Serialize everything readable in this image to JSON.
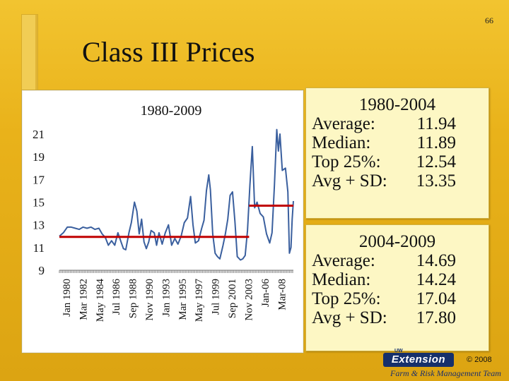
{
  "slide": {
    "number": "66",
    "title": "Class III Prices"
  },
  "chart_data": {
    "type": "line",
    "title": "1980-2009",
    "ylim": [
      9,
      21
    ],
    "y_ticks": [
      "21",
      "19",
      "17",
      "15",
      "13",
      "11",
      "9"
    ],
    "x_tick_labels": [
      "Jan 1980",
      "Mar 1982",
      "May 1984",
      "Jul 1986",
      "Sep 1988",
      "Nov 1990",
      "Jan 1993",
      "Mar 1995",
      "May 1997",
      "Jul 1999",
      "Sep 2001",
      "Nov 2003",
      "Jan-06",
      "Mar-08"
    ],
    "x_range": [
      1980.0,
      2009.6
    ],
    "series": [
      {
        "points": [
          [
            1980.0,
            12.0
          ],
          [
            1980.5,
            12.3
          ],
          [
            1981.0,
            12.8
          ],
          [
            1981.5,
            12.8
          ],
          [
            1982.0,
            12.7
          ],
          [
            1982.5,
            12.6
          ],
          [
            1983.0,
            12.8
          ],
          [
            1983.5,
            12.7
          ],
          [
            1984.0,
            12.8
          ],
          [
            1984.5,
            12.6
          ],
          [
            1985.0,
            12.7
          ],
          [
            1985.4,
            12.2
          ],
          [
            1985.8,
            11.9
          ],
          [
            1986.2,
            11.2
          ],
          [
            1986.6,
            11.6
          ],
          [
            1987.0,
            11.2
          ],
          [
            1987.4,
            12.3
          ],
          [
            1987.8,
            11.5
          ],
          [
            1988.1,
            10.9
          ],
          [
            1988.4,
            10.8
          ],
          [
            1988.8,
            12.3
          ],
          [
            1989.1,
            13.2
          ],
          [
            1989.5,
            15.0
          ],
          [
            1989.8,
            14.2
          ],
          [
            1990.1,
            12.2
          ],
          [
            1990.4,
            13.5
          ],
          [
            1990.7,
            11.5
          ],
          [
            1991.0,
            10.9
          ],
          [
            1991.3,
            11.5
          ],
          [
            1991.6,
            12.5
          ],
          [
            1992.0,
            12.3
          ],
          [
            1992.3,
            11.2
          ],
          [
            1992.6,
            12.3
          ],
          [
            1993.0,
            11.3
          ],
          [
            1993.4,
            12.3
          ],
          [
            1993.8,
            13.0
          ],
          [
            1994.2,
            11.2
          ],
          [
            1994.6,
            11.8
          ],
          [
            1995.0,
            11.3
          ],
          [
            1995.4,
            12.0
          ],
          [
            1995.8,
            13.2
          ],
          [
            1996.2,
            13.6
          ],
          [
            1996.6,
            15.5
          ],
          [
            1996.9,
            13.0
          ],
          [
            1997.2,
            11.4
          ],
          [
            1997.6,
            11.6
          ],
          [
            1998.0,
            12.7
          ],
          [
            1998.3,
            13.4
          ],
          [
            1998.6,
            16.0
          ],
          [
            1998.9,
            17.4
          ],
          [
            1999.1,
            16.1
          ],
          [
            1999.4,
            12.2
          ],
          [
            1999.7,
            10.5
          ],
          [
            2000.0,
            10.2
          ],
          [
            2000.3,
            10.0
          ],
          [
            2000.7,
            11.2
          ],
          [
            2001.0,
            12.2
          ],
          [
            2001.3,
            13.5
          ],
          [
            2001.6,
            15.6
          ],
          [
            2001.9,
            15.9
          ],
          [
            2002.2,
            13.3
          ],
          [
            2002.5,
            10.2
          ],
          [
            2002.9,
            9.9
          ],
          [
            2003.2,
            10.0
          ],
          [
            2003.5,
            10.3
          ],
          [
            2003.8,
            12.5
          ],
          [
            2004.1,
            16.5
          ],
          [
            2004.4,
            19.9
          ],
          [
            2004.7,
            14.5
          ],
          [
            2005.0,
            15.0
          ],
          [
            2005.4,
            14.0
          ],
          [
            2005.8,
            13.7
          ],
          [
            2006.2,
            12.2
          ],
          [
            2006.6,
            11.4
          ],
          [
            2006.9,
            12.3
          ],
          [
            2007.2,
            16.5
          ],
          [
            2007.5,
            21.4
          ],
          [
            2007.7,
            19.5
          ],
          [
            2007.9,
            21.0
          ],
          [
            2008.2,
            17.8
          ],
          [
            2008.6,
            18.0
          ],
          [
            2008.9,
            15.9
          ],
          [
            2009.1,
            10.5
          ],
          [
            2009.3,
            11.0
          ],
          [
            2009.45,
            13.5
          ],
          [
            2009.6,
            15.1
          ]
        ]
      }
    ],
    "averages": [
      {
        "x_start": 1980.0,
        "x_end": 2004.0,
        "value": 11.94
      },
      {
        "x_start": 2004.0,
        "x_end": 2009.6,
        "value": 14.69
      }
    ],
    "colors": {
      "line": "#3a5f9e",
      "average": "#c00000"
    }
  },
  "stats": [
    {
      "title": "1980-2004",
      "rows": [
        {
          "label": "Average:",
          "value": "11.94"
        },
        {
          "label": "Median:",
          "value": "11.89"
        },
        {
          "label": "Top 25%:",
          "value": "12.54"
        },
        {
          "label": "Avg + SD:",
          "value": "13.35"
        }
      ]
    },
    {
      "title": "2004-2009",
      "rows": [
        {
          "label": "Average:",
          "value": "14.69"
        },
        {
          "label": "Median:",
          "value": "14.24"
        },
        {
          "label": "Top 25%:",
          "value": "17.04"
        },
        {
          "label": "Avg + SD:",
          "value": "17.80"
        }
      ]
    }
  ],
  "footer": {
    "logo_text": "Extension",
    "logo_small": "UW",
    "copyright": "© 2008",
    "team": "Farm & Risk Management Team"
  }
}
